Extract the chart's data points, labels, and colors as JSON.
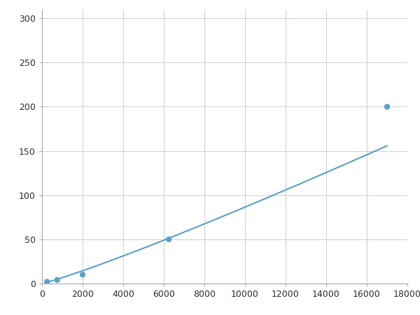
{
  "x_data": [
    250,
    750,
    2000,
    6250,
    17000
  ],
  "y_data": [
    2,
    4,
    10,
    50,
    200
  ],
  "line_color": "#5ba3c9",
  "marker_color": "#5ba3c9",
  "marker_size": 6,
  "line_width": 1.5,
  "xlim": [
    0,
    18000
  ],
  "ylim": [
    0,
    310
  ],
  "xticks": [
    0,
    2000,
    4000,
    6000,
    8000,
    10000,
    12000,
    14000,
    16000,
    18000
  ],
  "yticks": [
    0,
    50,
    100,
    150,
    200,
    250,
    300
  ],
  "xtick_labels": [
    "0",
    "2000",
    "4000",
    "6000",
    "8000",
    "10000",
    "12000",
    "14000",
    "16000",
    "18000"
  ],
  "ytick_labels": [
    "0",
    "50",
    "100",
    "150",
    "200",
    "250",
    "300"
  ],
  "grid_color": "#d0d0d0",
  "grid_linewidth": 0.7,
  "background_color": "#ffffff",
  "tick_fontsize": 9,
  "spine_color": "#aaaaaa"
}
